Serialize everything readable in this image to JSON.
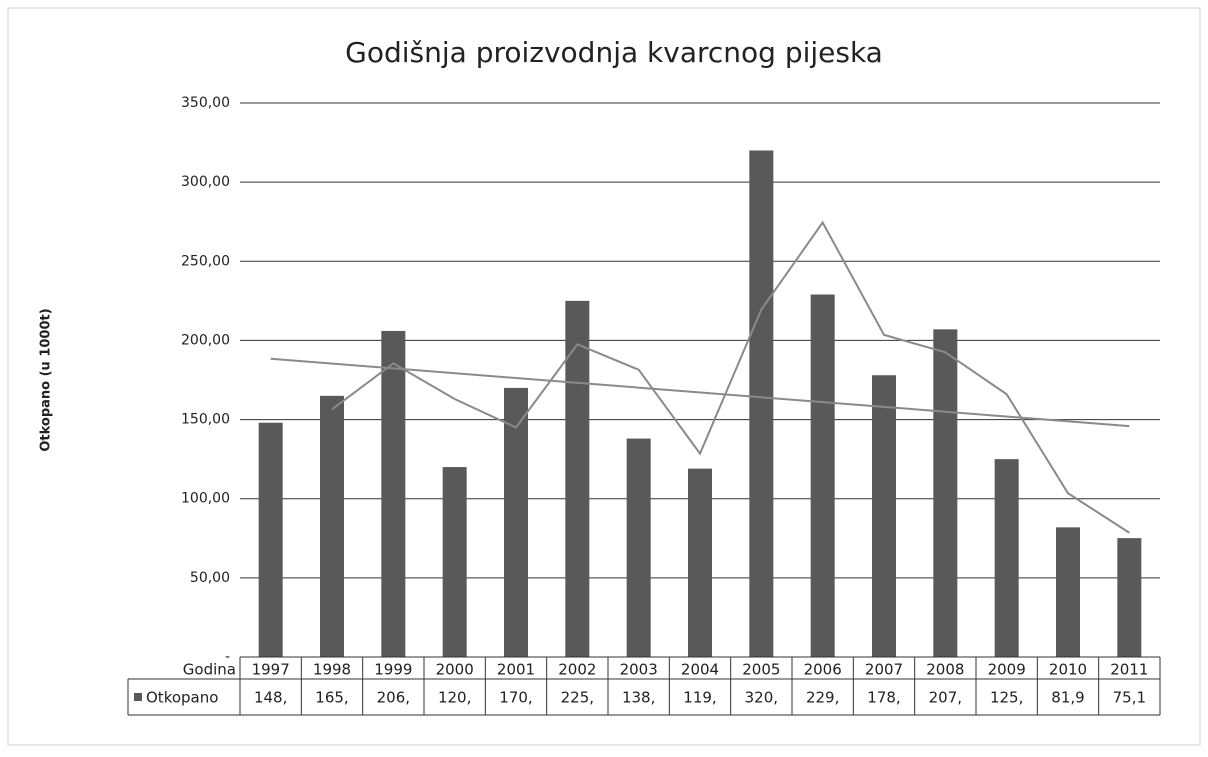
{
  "chart_data": {
    "type": "bar",
    "title": "Godišnja proizvodnja kvarcnog pijeska",
    "y_label": "Otkopano (u 1000t)",
    "table_header": "Godina",
    "categories": [
      "1997",
      "1998",
      "1999",
      "2000",
      "2001",
      "2002",
      "2003",
      "2004",
      "2005",
      "2006",
      "2007",
      "2008",
      "2009",
      "2010",
      "2011"
    ],
    "series": [
      {
        "name": "Otkopano",
        "color": "#595959",
        "values": [
          148,
          165,
          206,
          120,
          170,
          225,
          138,
          119,
          320,
          229,
          178,
          207,
          125,
          81.9,
          75.1
        ],
        "value_labels": [
          "148,",
          "165,",
          "206,",
          "120,",
          "170,",
          "225,",
          "138,",
          "119,",
          "320,",
          "229,",
          "178,",
          "207,",
          "125,",
          "81,9",
          "75,1"
        ]
      }
    ],
    "ylim": [
      0,
      350
    ],
    "yticks": [
      {
        "value": 0,
        "label": "-"
      },
      {
        "value": 50,
        "label": "50,00"
      },
      {
        "value": 100,
        "label": "100,00"
      },
      {
        "value": 150,
        "label": "150,00"
      },
      {
        "value": 200,
        "label": "200,00"
      },
      {
        "value": 250,
        "label": "250,00"
      },
      {
        "value": 300,
        "label": "300,00"
      },
      {
        "value": 350,
        "label": "350,00"
      }
    ],
    "grid": true,
    "trendlines": {
      "moving_average": 2,
      "linear": true,
      "color": "#8a8a8a"
    }
  }
}
